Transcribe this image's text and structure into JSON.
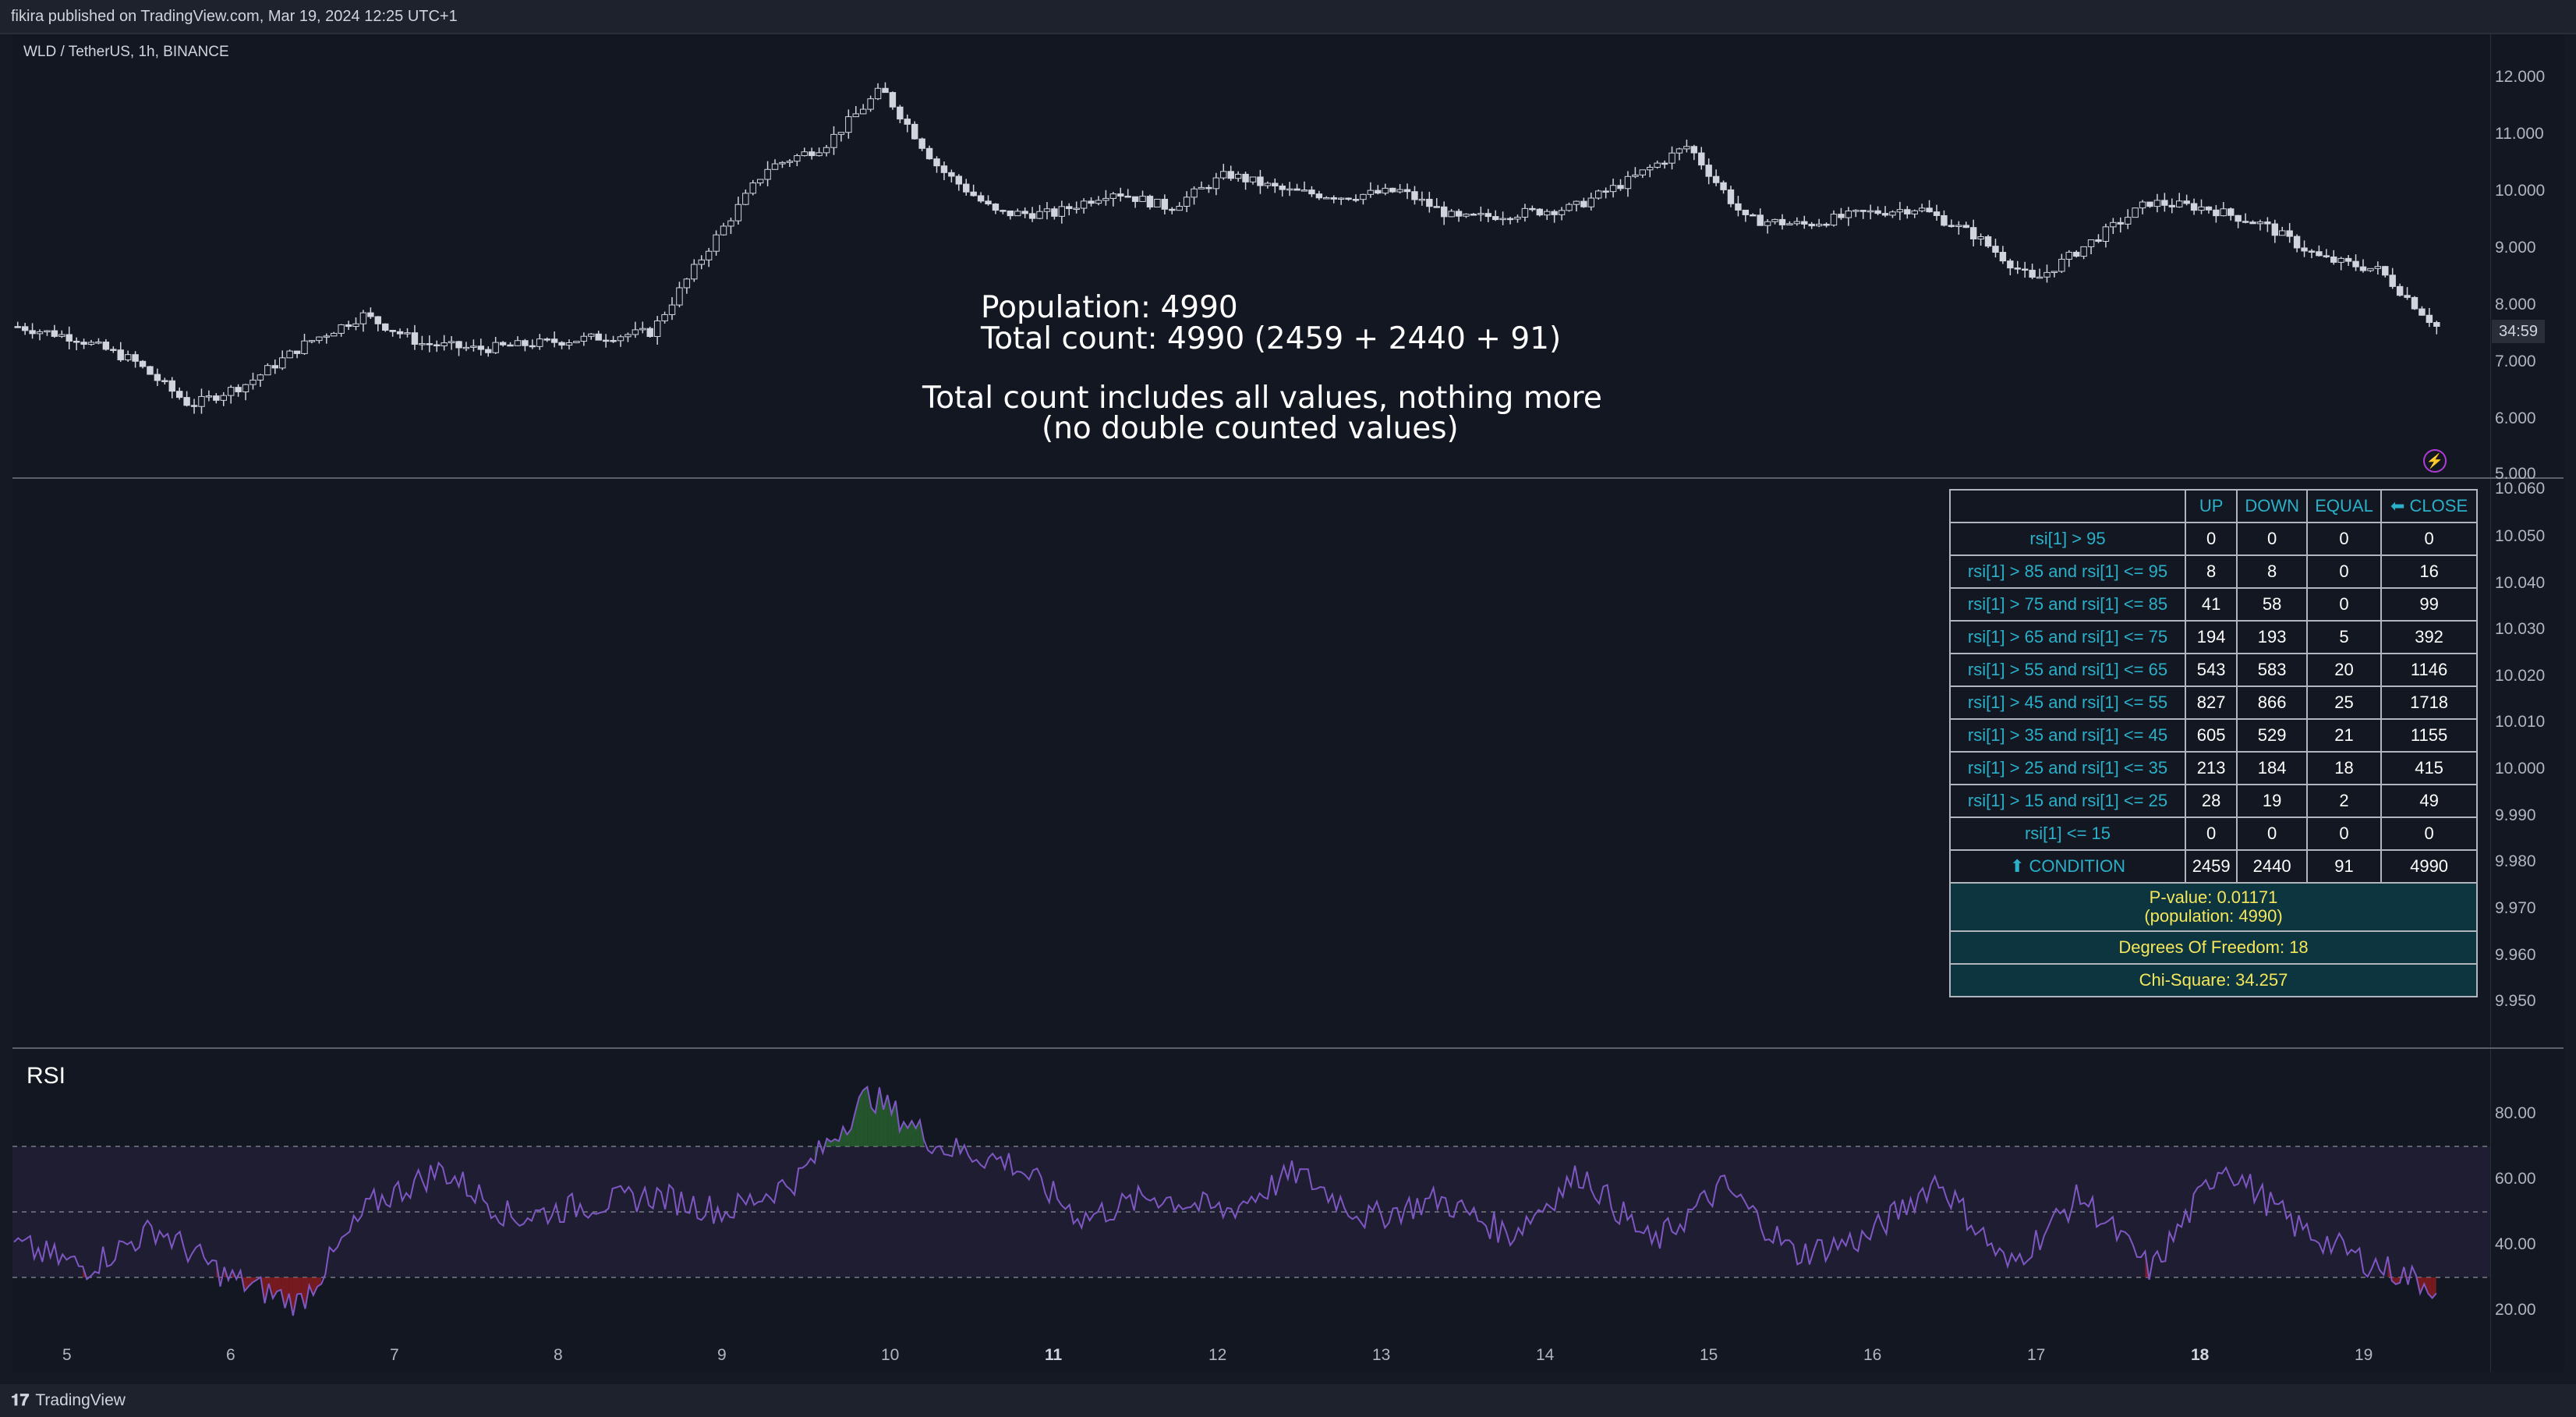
{
  "header": {
    "published": "fikira published on TradingView.com, Mar 19, 2024 12:25 UTC+1"
  },
  "symbol": "WLD / TetherUS, 1h, BINANCE",
  "overlay": {
    "line1": "Population:  4990",
    "line2": "Total count: 4990 (2459 + 2440 + 91)",
    "line3": "Total count includes all values, nothing more",
    "line4": "(no double counted values)"
  },
  "price_axis": [
    "12.000",
    "11.000",
    "10.000",
    "9.000",
    "8.000",
    "7.000",
    "6.000",
    "5.000"
  ],
  "countdown": "34:59",
  "mid_axis": [
    "10.060",
    "10.050",
    "10.040",
    "10.030",
    "10.020",
    "10.010",
    "10.000",
    "9.990",
    "9.980",
    "9.970",
    "9.960",
    "9.950"
  ],
  "rsi_axis": [
    "80.00",
    "60.00",
    "40.00",
    "20.00"
  ],
  "rsi_title": "RSI",
  "x_axis": [
    {
      "label": "5",
      "bold": false
    },
    {
      "label": "6",
      "bold": false
    },
    {
      "label": "7",
      "bold": false
    },
    {
      "label": "8",
      "bold": false
    },
    {
      "label": "9",
      "bold": false
    },
    {
      "label": "10",
      "bold": false
    },
    {
      "label": "11",
      "bold": true
    },
    {
      "label": "12",
      "bold": false
    },
    {
      "label": "13",
      "bold": false
    },
    {
      "label": "14",
      "bold": false
    },
    {
      "label": "15",
      "bold": false
    },
    {
      "label": "16",
      "bold": false
    },
    {
      "label": "17",
      "bold": false
    },
    {
      "label": "18",
      "bold": true
    },
    {
      "label": "19",
      "bold": false
    }
  ],
  "table": {
    "headers": [
      "",
      "UP",
      "DOWN",
      "EQUAL",
      "⬅ CLOSE"
    ],
    "rows": [
      {
        "label": "rsi[1] > 95",
        "up": "0",
        "down": "0",
        "equal": "0",
        "close": "0"
      },
      {
        "label": "rsi[1] > 85 and rsi[1] <= 95",
        "up": "8",
        "down": "8",
        "equal": "0",
        "close": "16"
      },
      {
        "label": "rsi[1] > 75 and rsi[1] <= 85",
        "up": "41",
        "down": "58",
        "equal": "0",
        "close": "99"
      },
      {
        "label": "rsi[1] > 65 and rsi[1] <= 75",
        "up": "194",
        "down": "193",
        "equal": "5",
        "close": "392"
      },
      {
        "label": "rsi[1] > 55 and rsi[1] <= 65",
        "up": "543",
        "down": "583",
        "equal": "20",
        "close": "1146"
      },
      {
        "label": "rsi[1] > 45 and rsi[1] <= 55",
        "up": "827",
        "down": "866",
        "equal": "25",
        "close": "1718"
      },
      {
        "label": "rsi[1] > 35 and rsi[1] <= 45",
        "up": "605",
        "down": "529",
        "equal": "21",
        "close": "1155"
      },
      {
        "label": "rsi[1] > 25 and rsi[1] <= 35",
        "up": "213",
        "down": "184",
        "equal": "18",
        "close": "415"
      },
      {
        "label": "rsi[1] > 15 and rsi[1] <= 25",
        "up": "28",
        "down": "19",
        "equal": "2",
        "close": "49"
      },
      {
        "label": "rsi[1] <= 15",
        "up": "0",
        "down": "0",
        "equal": "0",
        "close": "0"
      }
    ],
    "total": {
      "label": "⬆ CONDITION",
      "up": "2459",
      "down": "2440",
      "equal": "91",
      "close": "4990"
    },
    "pvalue_line1": "P-value: 0.01171",
    "pvalue_line2": "(population: 4990)",
    "dof": "Degrees Of Freedom: 18",
    "chisq": "Chi-Square: 34.257"
  },
  "footer": {
    "brand": "TradingView"
  },
  "colors": {
    "background": "#131722",
    "candle": "#d1d4dc",
    "rsi_line": "#7e57c2",
    "rsi_band": "#7e57c2",
    "overbought_fill": "#2e7d32",
    "oversold_fill": "#b71c1c",
    "table_label": "#2ab0c9",
    "info_text": "#f5e65a",
    "info_bg": "#0c3540"
  },
  "chart_data": {
    "type": "candlestick",
    "price_anchor_values": [
      7.6,
      7.4,
      7.0,
      6.2,
      6.6,
      7.3,
      7.8,
      7.3,
      7.2,
      7.3,
      7.4,
      7.5,
      9.0,
      10.4,
      10.8,
      11.8,
      10.4,
      9.6,
      9.6,
      10.0,
      9.7,
      10.3,
      10.0,
      9.9,
      10.0,
      9.5,
      9.6,
      9.7,
      10.2,
      10.8,
      9.5,
      9.4,
      9.6,
      9.7,
      9.2,
      8.4,
      9.1,
      9.8,
      9.7,
      9.4,
      8.8,
      8.6,
      7.6
    ],
    "rsi_anchor_values": [
      40,
      33,
      45,
      30,
      22,
      52,
      63,
      48,
      52,
      55,
      50,
      60,
      86,
      70,
      65,
      48,
      55,
      50,
      62,
      48,
      54,
      43,
      62,
      40,
      58,
      37,
      42,
      60,
      33,
      55,
      32,
      65,
      46,
      35,
      27
    ],
    "rsi_levels": [
      70,
      50,
      30
    ]
  }
}
